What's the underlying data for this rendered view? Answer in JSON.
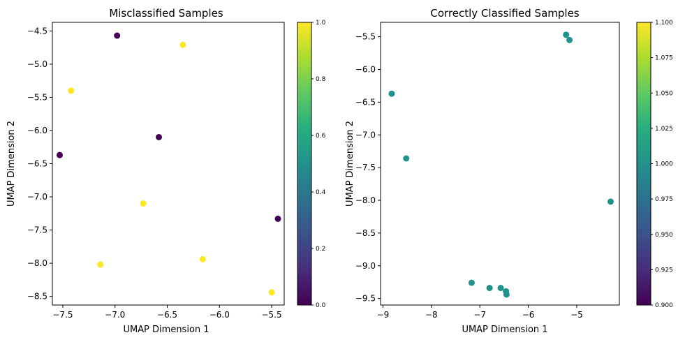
{
  "chart_data": [
    {
      "type": "scatter",
      "title": "Misclassified Samples",
      "xlabel": "UMAP Dimension 1",
      "ylabel": "UMAP Dimension 2",
      "xlim": [
        -7.6,
        -5.38
      ],
      "ylim": [
        -8.63,
        -4.37
      ],
      "xticks": [
        -7.5,
        -7.0,
        -6.5,
        -6.0,
        -5.5
      ],
      "xtick_labels": [
        "−7.5",
        "−7.0",
        "−6.5",
        "−6.0",
        "−5.5"
      ],
      "yticks": [
        -4.5,
        -5.0,
        -5.5,
        -6.0,
        -6.5,
        -7.0,
        -7.5,
        -8.0,
        -8.5
      ],
      "ytick_labels": [
        "−4.5",
        "−5.0",
        "−5.5",
        "−6.0",
        "−6.5",
        "−7.0",
        "−7.5",
        "−8.0",
        "−8.5"
      ],
      "colormap": "viridis",
      "colorbar": {
        "min": 0.0,
        "max": 1.0,
        "ticks": [
          0.0,
          0.2,
          0.4,
          0.6,
          0.8,
          1.0
        ],
        "tick_labels": [
          "0.0",
          "0.2",
          "0.4",
          "0.6",
          "0.8",
          "1.0"
        ]
      },
      "grid": false,
      "points": [
        {
          "x": -6.98,
          "y": -4.57,
          "c": 0
        },
        {
          "x": -6.35,
          "y": -4.71,
          "c": 1
        },
        {
          "x": -7.42,
          "y": -5.4,
          "c": 1
        },
        {
          "x": -6.58,
          "y": -6.1,
          "c": 0
        },
        {
          "x": -7.53,
          "y": -6.37,
          "c": 0
        },
        {
          "x": -6.73,
          "y": -7.1,
          "c": 1
        },
        {
          "x": -5.44,
          "y": -7.33,
          "c": 0
        },
        {
          "x": -7.14,
          "y": -8.02,
          "c": 1
        },
        {
          "x": -6.16,
          "y": -7.94,
          "c": 1
        },
        {
          "x": -5.5,
          "y": -8.44,
          "c": 1
        }
      ]
    },
    {
      "type": "scatter",
      "title": "Correctly Classified Samples",
      "xlabel": "UMAP Dimension 1",
      "ylabel": "UMAP Dimension 2",
      "xlim": [
        -9.05,
        -4.12
      ],
      "ylim": [
        -9.6,
        -5.28
      ],
      "xticks": [
        -9,
        -8,
        -7,
        -6,
        -5
      ],
      "xtick_labels": [
        "−9",
        "−8",
        "−7",
        "−6",
        "−5"
      ],
      "yticks": [
        -5.5,
        -6.0,
        -6.5,
        -7.0,
        -7.5,
        -8.0,
        -8.5,
        -9.0,
        -9.5
      ],
      "ytick_labels": [
        "−5.5",
        "−6.0",
        "−6.5",
        "−7.0",
        "−7.5",
        "−8.0",
        "−8.5",
        "−9.0",
        "−9.5"
      ],
      "colormap": "viridis",
      "colorbar": {
        "min": 0.9,
        "max": 1.1,
        "ticks": [
          0.9,
          0.925,
          0.95,
          0.975,
          1.0,
          1.025,
          1.05,
          1.075,
          1.1
        ],
        "tick_labels": [
          "0.900",
          "0.925",
          "0.950",
          "0.975",
          "1.000",
          "1.025",
          "1.050",
          "1.075",
          "1.100"
        ]
      },
      "grid": false,
      "points": [
        {
          "x": -5.22,
          "y": -5.47,
          "c": 1
        },
        {
          "x": -5.15,
          "y": -5.55,
          "c": 1
        },
        {
          "x": -8.82,
          "y": -6.37,
          "c": 1
        },
        {
          "x": -8.52,
          "y": -7.36,
          "c": 1
        },
        {
          "x": -4.3,
          "y": -8.02,
          "c": 1
        },
        {
          "x": -7.17,
          "y": -9.26,
          "c": 1
        },
        {
          "x": -6.8,
          "y": -9.34,
          "c": 1
        },
        {
          "x": -6.57,
          "y": -9.34,
          "c": 1
        },
        {
          "x": -6.46,
          "y": -9.39,
          "c": 1
        },
        {
          "x": -6.45,
          "y": -9.44,
          "c": 1
        }
      ]
    }
  ]
}
